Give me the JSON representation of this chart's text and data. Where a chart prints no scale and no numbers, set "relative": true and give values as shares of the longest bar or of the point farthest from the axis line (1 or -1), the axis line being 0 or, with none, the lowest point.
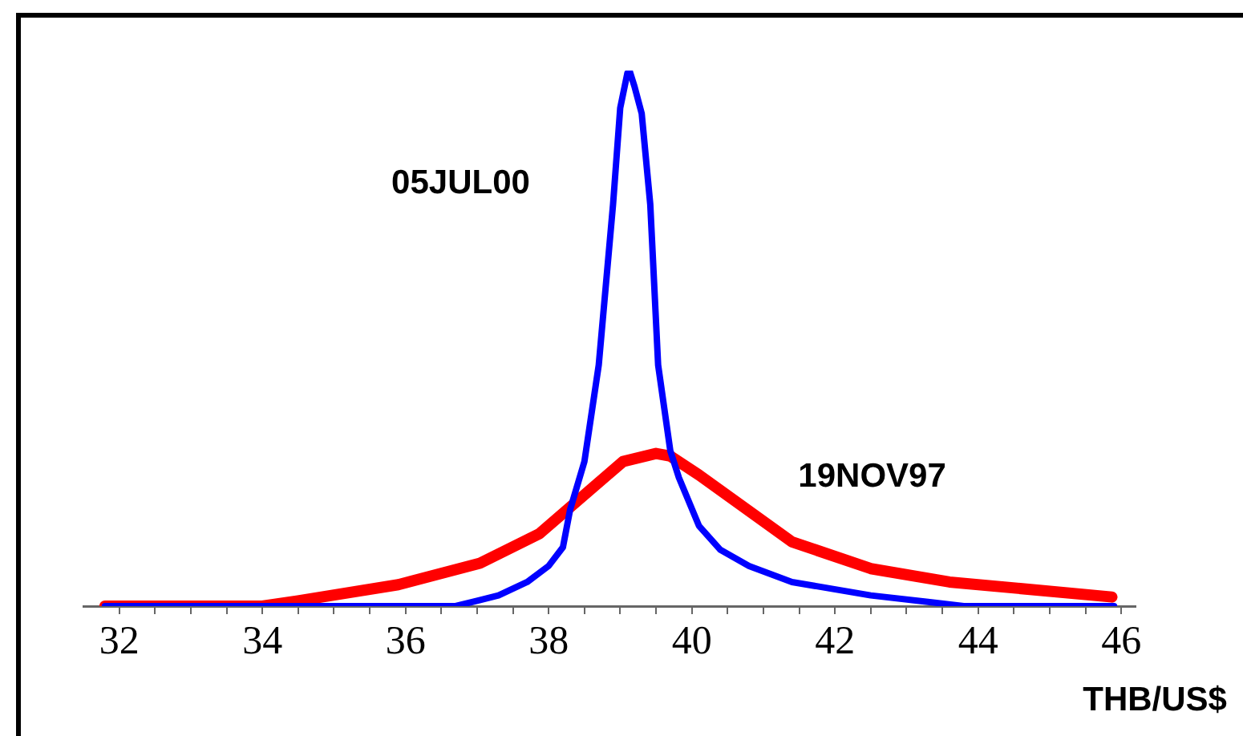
{
  "chart_data": {
    "type": "line",
    "relative": true,
    "xlabel": "THB/US$",
    "xlim": [
      31.5,
      46.2
    ],
    "xticks": [
      32,
      {
        "value": 32.5,
        "label": null
      },
      {
        "value": 33,
        "label": null
      },
      {
        "value": 33.5,
        "label": null
      },
      34,
      {
        "value": 34.5,
        "label": null
      },
      {
        "value": 35,
        "label": null
      },
      {
        "value": 35.5,
        "label": null
      },
      36,
      {
        "value": 36.5,
        "label": null
      },
      {
        "value": 37,
        "label": null
      },
      {
        "value": 37.5,
        "label": null
      },
      38,
      {
        "value": 38.5,
        "label": null
      },
      {
        "value": 39,
        "label": null
      },
      {
        "value": 39.5,
        "label": null
      },
      40,
      {
        "value": 40.5,
        "label": null
      },
      {
        "value": 41,
        "label": null
      },
      {
        "value": 41.5,
        "label": null
      },
      42,
      {
        "value": 42.5,
        "label": null
      },
      {
        "value": 43,
        "label": null
      },
      {
        "value": 43.5,
        "label": null
      },
      44,
      {
        "value": 44.5,
        "label": null
      },
      {
        "value": 45,
        "label": null
      },
      {
        "value": 45.5,
        "label": null
      },
      46
    ],
    "grid": false,
    "series": [
      {
        "name": "05JUL00",
        "color": "#0000ff",
        "x": [
          31.8,
          36.7,
          37.0,
          37.3,
          37.7,
          38.0,
          38.2,
          38.3,
          38.5,
          38.7,
          38.9,
          39.0,
          39.1,
          39.13,
          39.2,
          39.3,
          39.42,
          39.53,
          39.7,
          39.82,
          40.1,
          40.4,
          40.8,
          41.4,
          42.5,
          43.3,
          43.8,
          45.9
        ],
        "values": [
          0,
          0,
          0.01,
          0.02,
          0.045,
          0.075,
          0.11,
          0.18,
          0.27,
          0.45,
          0.75,
          0.93,
          0.995,
          1,
          0.97,
          0.92,
          0.75,
          0.45,
          0.29,
          0.24,
          0.15,
          0.105,
          0.075,
          0.045,
          0.02,
          0.008,
          0,
          0
        ]
      },
      {
        "name": "19NOV97",
        "color": "#ff0000",
        "x": [
          31.8,
          34.0,
          34.5,
          35.9,
          37.04,
          37.87,
          39.04,
          39.5,
          39.7,
          40.1,
          41.4,
          42.5,
          43.6,
          45.87
        ],
        "values": [
          0,
          0,
          0.01,
          0.04,
          0.08,
          0.135,
          0.27,
          0.285,
          0.28,
          0.245,
          0.12,
          0.07,
          0.045,
          0.017
        ]
      }
    ]
  }
}
